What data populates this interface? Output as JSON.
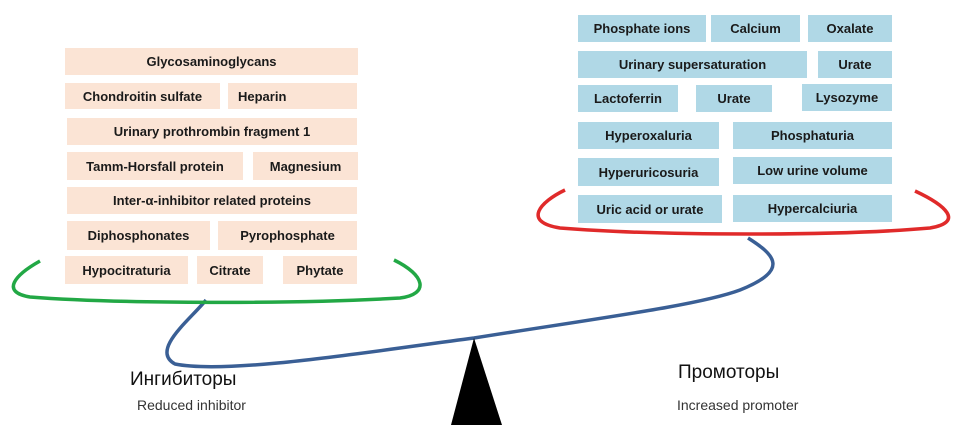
{
  "inhibitors": {
    "title": "Ингибиторы",
    "subtitle": "Reduced inhibitor",
    "color": "#22a845",
    "box_color": "#fbe4d5",
    "items": [
      "Glycosaminoglycans",
      "Chondroitin sulfate",
      "Heparin",
      "Urinary prothrombin fragment 1",
      "Tamm-Horsfall protein",
      "Magnesium",
      "Inter-α-inhibitor related proteins",
      "Diphosphonates",
      "Pyrophosphate",
      "Hypocitraturia",
      "Citrate",
      "Phytate"
    ]
  },
  "promoters": {
    "title": "Промоторы",
    "subtitle": "Increased promoter",
    "color": "#e02a2a",
    "box_color": "#b0d8e6",
    "items": [
      "Phosphate ions",
      "Calcium",
      "Oxalate",
      "Urinary supersaturation",
      "Urate",
      "Lactoferrin",
      "Urate",
      "Lysozyme",
      "Hyperoxaluria",
      "Phosphaturia",
      "Hyperuricosuria",
      "Low urine volume",
      "Uric acid or urate",
      "Hypercalciuria"
    ]
  },
  "beam_color": "#3a5f95"
}
